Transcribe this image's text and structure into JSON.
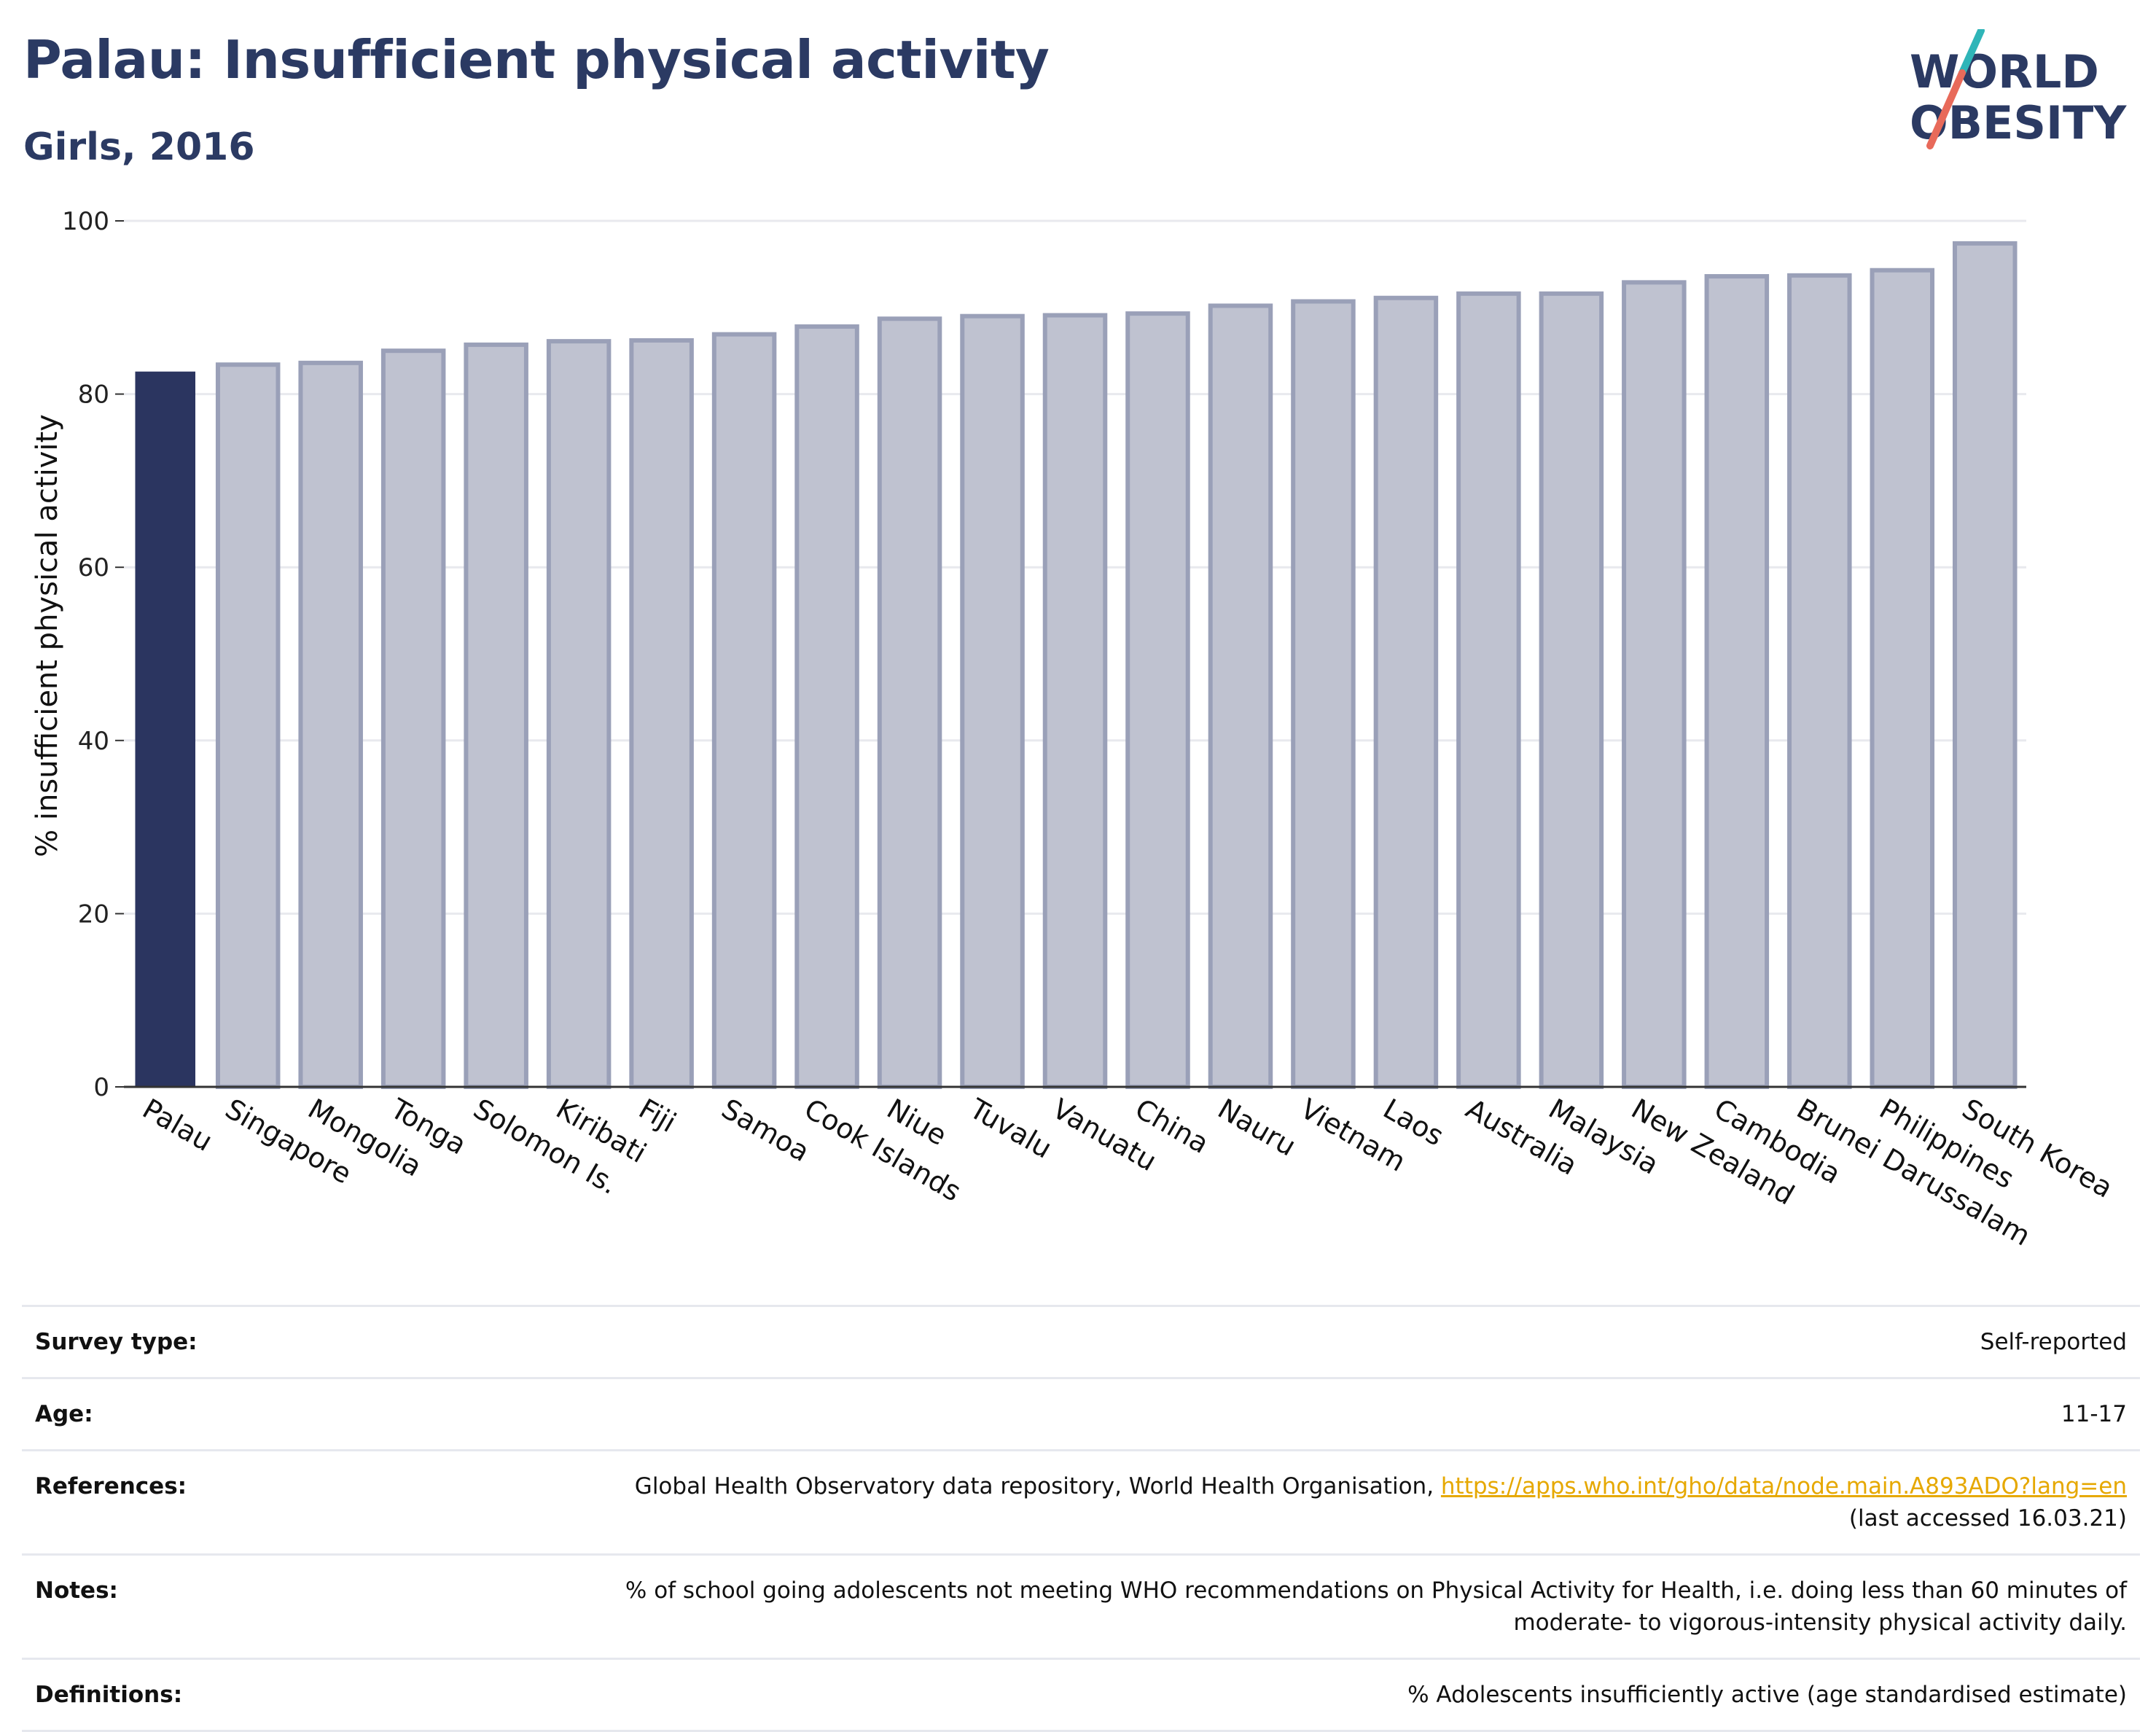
{
  "header": {
    "title": "Palau: Insufficient physical activity",
    "subtitle": "Girls, 2016"
  },
  "logo": {
    "line1": "WORLD",
    "line2": "OBESITY",
    "colors": {
      "text": "#2b3a63",
      "teal": "#2fb5b8",
      "coral": "#e86a5a"
    }
  },
  "chart_data": {
    "type": "bar",
    "ylabel": "% insufficient physical activity",
    "ylim": [
      0,
      100
    ],
    "yticks": [
      0,
      20,
      40,
      60,
      80,
      100
    ],
    "grid": true,
    "categories": [
      "Palau",
      "Singapore",
      "Mongolia",
      "Tonga",
      "Solomon Is.",
      "Kiribati",
      "Fiji",
      "Samoa",
      "Cook Islands",
      "Niue",
      "Tuvalu",
      "Vanuatu",
      "China",
      "Nauru",
      "Vietnam",
      "Laos",
      "Australia",
      "Malaysia",
      "New Zealand",
      "Cambodia",
      "Brunei Darussalam",
      "Philippines",
      "South Korea"
    ],
    "values": [
      82.6,
      83.4,
      83.6,
      85.0,
      85.7,
      86.1,
      86.2,
      86.9,
      87.8,
      88.7,
      89.0,
      89.1,
      89.3,
      90.2,
      90.7,
      91.1,
      91.6,
      91.6,
      92.9,
      93.6,
      93.7,
      94.3,
      97.4
    ],
    "highlight": "Palau",
    "colors": {
      "highlight": "#2b3560",
      "other_fill": "#bfc2d0",
      "other_border": "#9aa0b8"
    }
  },
  "info": [
    {
      "key": "Survey type:",
      "value": "Self-reported"
    },
    {
      "key": "Age:",
      "value": "11-17"
    },
    {
      "key": "References:",
      "value": "Global Health Observatory data repository, World Health Organisation, ",
      "link": "https://apps.who.int/gho/data/node.main.A893ADO?lang=en",
      "value2": "(last accessed 16.03.21)"
    },
    {
      "key": "Notes:",
      "value": "% of school going adolescents not meeting WHO recommendations on Physical Activity for Health, i.e. doing less than 60 minutes of",
      "value2": "moderate- to vigorous-intensity physical activity daily."
    },
    {
      "key": "Definitions:",
      "value": "% Adolescents insufficiently active (age standardised estimate)"
    }
  ]
}
